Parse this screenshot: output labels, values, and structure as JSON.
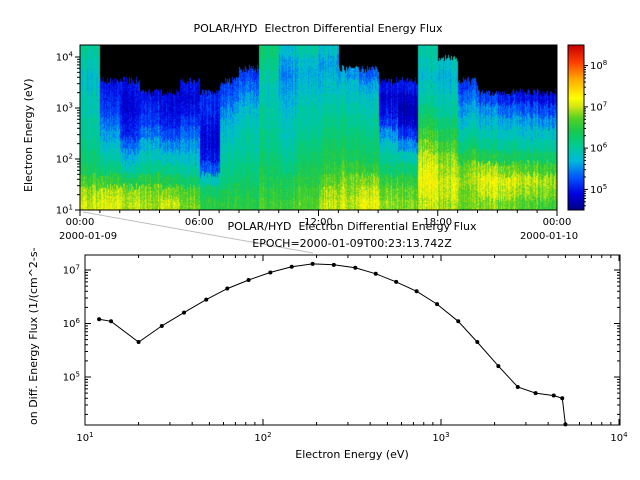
{
  "window": {
    "background": "#ffffff",
    "text_color": "#000000"
  },
  "annotations": {
    "connector_line_color": "#bdbdbd"
  },
  "chart_data": [
    {
      "type": "heatmap",
      "title": "POLAR/HYD  Electron Differential Energy Flux",
      "ylabel": "Electron Energy (eV)",
      "x_axis": {
        "tick_labels": [
          "00:00",
          "06:00",
          "12:00",
          "18:00",
          "00:00"
        ],
        "tick_hours": [
          0,
          6,
          12,
          18,
          24
        ],
        "date_labels": [
          "2000-01-09",
          "2000-01-10"
        ],
        "range_hours": [
          0,
          24
        ]
      },
      "y_axis": {
        "scale": "log",
        "unit": "eV",
        "tick_exponents": [
          1,
          2,
          3,
          4
        ],
        "range_log10": [
          1.0,
          4.235
        ]
      },
      "colorbar": {
        "tick_exponents": [
          5,
          6,
          7,
          8
        ],
        "range_log10": [
          4.5,
          8.5
        ],
        "no_data_color": "#000000",
        "colormap_stops": [
          [
            0.0,
            "#000082"
          ],
          [
            0.1,
            "#0000e1"
          ],
          [
            0.2,
            "#0055ff"
          ],
          [
            0.3,
            "#00b9dc"
          ],
          [
            0.4,
            "#00cd8c"
          ],
          [
            0.48,
            "#19c850"
          ],
          [
            0.56,
            "#55d223"
          ],
          [
            0.63,
            "#d2e614"
          ],
          [
            0.68,
            "#ffff00"
          ],
          [
            0.8,
            "#ffa500"
          ],
          [
            0.9,
            "#ff3c00"
          ],
          [
            1.0,
            "#c80000"
          ]
        ]
      },
      "energy_rows_bottom_to_top": 14,
      "values_log10_flux_by_hour": [
        [
          7.0,
          6.9,
          6.6,
          6.3,
          6.2,
          6.1,
          6.0,
          6.0,
          5.9,
          5.9,
          5.8,
          5.8,
          5.9,
          6.0
        ],
        [
          7.1,
          7.0,
          6.6,
          6.2,
          6.0,
          5.8,
          5.6,
          5.4,
          5.2,
          5.1,
          5.0,
          null,
          null,
          null
        ],
        [
          7.0,
          6.9,
          6.4,
          6.0,
          5.7,
          5.4,
          5.1,
          5.0,
          4.9,
          4.9,
          5.0,
          null,
          null,
          null
        ],
        [
          6.9,
          6.8,
          6.5,
          6.1,
          5.9,
          5.7,
          5.4,
          5.2,
          5.1,
          5.0,
          null,
          null,
          null,
          null
        ],
        [
          7.0,
          6.8,
          6.4,
          6.1,
          5.8,
          5.5,
          5.2,
          5.0,
          4.9,
          4.9,
          null,
          null,
          null,
          null
        ],
        [
          6.8,
          6.7,
          6.3,
          6.0,
          5.8,
          5.6,
          5.4,
          5.2,
          5.0,
          4.9,
          5.0,
          null,
          null,
          null
        ],
        [
          6.5,
          6.3,
          5.9,
          5.3,
          5.0,
          4.9,
          4.9,
          5.0,
          5.1,
          5.1,
          null,
          null,
          null,
          null
        ],
        [
          6.5,
          6.4,
          6.2,
          6.1,
          6.0,
          5.9,
          5.8,
          5.7,
          5.5,
          5.3,
          5.2,
          null,
          null,
          null
        ],
        [
          6.5,
          6.4,
          6.3,
          6.2,
          6.1,
          6.0,
          6.0,
          5.9,
          5.8,
          5.6,
          5.4,
          5.2,
          null,
          null
        ],
        [
          6.6,
          6.5,
          6.4,
          6.3,
          6.2,
          6.1,
          6.1,
          6.0,
          6.0,
          5.9,
          5.9,
          6.0,
          6.1,
          6.2
        ],
        [
          6.6,
          6.5,
          6.4,
          6.2,
          6.1,
          6.0,
          5.9,
          5.9,
          5.8,
          5.7,
          5.6,
          5.5,
          5.6,
          5.8
        ],
        [
          6.7,
          6.6,
          6.5,
          6.4,
          6.3,
          6.2,
          6.1,
          6.0,
          6.0,
          5.9,
          5.8,
          5.7,
          5.8,
          6.0
        ],
        [
          7.0,
          6.9,
          6.7,
          6.5,
          6.4,
          6.3,
          6.2,
          6.1,
          6.0,
          5.9,
          5.8,
          5.7,
          5.6,
          5.8
        ],
        [
          7.0,
          6.9,
          6.8,
          6.6,
          6.4,
          6.3,
          6.2,
          6.1,
          6.0,
          5.9,
          5.8,
          5.6,
          null,
          null
        ],
        [
          7.1,
          7.0,
          6.8,
          6.5,
          6.3,
          6.2,
          6.1,
          6.0,
          5.9,
          5.8,
          5.6,
          5.3,
          null,
          null
        ],
        [
          6.9,
          6.8,
          6.6,
          6.3,
          6.1,
          5.9,
          5.6,
          5.2,
          5.0,
          4.9,
          5.0,
          null,
          null,
          null
        ],
        [
          6.8,
          6.7,
          6.5,
          6.2,
          5.9,
          5.5,
          5.1,
          4.8,
          4.7,
          4.8,
          5.0,
          null,
          null,
          null
        ],
        [
          7.0,
          7.1,
          7.2,
          7.1,
          7.0,
          6.8,
          6.6,
          6.4,
          6.2,
          6.0,
          5.9,
          5.8,
          5.9,
          6.0
        ],
        [
          6.9,
          7.0,
          7.0,
          6.9,
          6.8,
          6.6,
          6.4,
          6.2,
          6.0,
          5.9,
          5.8,
          5.7,
          5.8,
          null
        ],
        [
          6.8,
          6.8,
          6.9,
          6.8,
          6.5,
          6.2,
          6.0,
          5.8,
          5.6,
          5.4,
          5.2,
          null,
          null,
          null
        ],
        [
          6.8,
          7.0,
          7.1,
          6.9,
          6.4,
          6.1,
          5.9,
          5.7,
          5.5,
          5.2,
          null,
          null,
          null,
          null
        ],
        [
          6.8,
          7.0,
          7.1,
          6.8,
          6.4,
          6.1,
          5.9,
          5.7,
          5.4,
          5.1,
          null,
          null,
          null,
          null
        ],
        [
          6.7,
          6.9,
          7.0,
          6.7,
          6.3,
          6.0,
          5.8,
          5.6,
          5.3,
          5.0,
          null,
          null,
          null,
          null
        ],
        [
          6.6,
          6.8,
          6.9,
          6.6,
          6.3,
          6.0,
          5.8,
          5.5,
          5.2,
          4.9,
          null,
          null,
          null,
          null
        ]
      ]
    },
    {
      "type": "line",
      "title": "POLAR/HYD  Electron Differential Energy Flux",
      "subtitle": "EPOCH=2000-01-09T00:23:13.742Z",
      "xlabel": "Electron Energy (eV)",
      "ylabel_visible": "on Diff. Energy Flux (1/(cm^2-s-",
      "x_axis": {
        "scale": "log",
        "tick_exponents": [
          1,
          2,
          3,
          4
        ],
        "range_log10": [
          1.0,
          4.01
        ]
      },
      "y_axis": {
        "scale": "log",
        "tick_exponents": [
          5,
          6,
          7
        ],
        "range_log10": [
          4.1,
          7.28
        ]
      },
      "series": [
        {
          "name": "electron-flux",
          "marker": "dot",
          "color": "#000000",
          "E_eV": [
            12,
            14,
            20,
            27,
            36,
            48,
            63,
            83,
            110,
            145,
            190,
            250,
            330,
            430,
            560,
            730,
            950,
            1250,
            1600,
            2100,
            2700,
            3400,
            4300,
            4800,
            5000
          ],
          "flux": [
            1200000.0,
            1100000.0,
            450000.0,
            900000.0,
            1600000.0,
            2800000.0,
            4500000.0,
            6500000.0,
            9000000.0,
            11500000.0,
            13000000.0,
            12500000.0,
            11000000.0,
            8500000.0,
            6000000.0,
            4000000.0,
            2300000.0,
            1100000.0,
            450000.0,
            160000.0,
            65000.0,
            50000.0,
            45000.0,
            40000.0,
            13000.0
          ]
        }
      ]
    }
  ]
}
